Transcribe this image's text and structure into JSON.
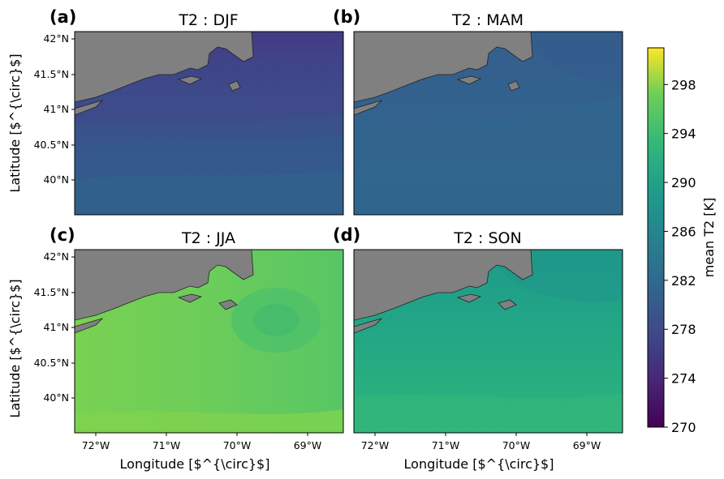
{
  "figure": {
    "colorbar": {
      "label": "mean T2 [K]",
      "ticks": [
        "270",
        "274",
        "278",
        "282",
        "286",
        "290",
        "294",
        "298"
      ],
      "range": [
        270,
        301
      ],
      "colormap": "viridis"
    },
    "lon_ticks": [
      "72°W",
      "71°W",
      "70°W",
      "69°W"
    ],
    "lat_ticks": [
      "42°N",
      "41.5°N",
      "41°N",
      "40.5°N",
      "40°N"
    ],
    "xlabel": "Longitude [$^{\\circ}$]",
    "ylabel": "Latitude [$^{\\circ}$]",
    "land_color": "#808080",
    "panels": [
      {
        "label": "(a)",
        "title": "T2 : DJF",
        "mean_range_K": [
          275,
          279
        ]
      },
      {
        "label": "(b)",
        "title": "T2 : MAM",
        "mean_range_K": [
          279,
          281
        ]
      },
      {
        "label": "(c)",
        "title": "T2 : JJA",
        "mean_range_K": [
          292,
          295
        ]
      },
      {
        "label": "(d)",
        "title": "T2 : SON",
        "mean_range_K": [
          287,
          290
        ]
      }
    ]
  }
}
